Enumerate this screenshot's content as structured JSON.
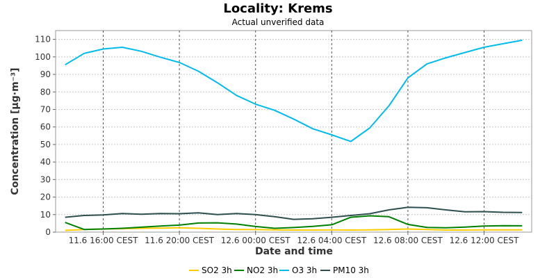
{
  "chart_data": {
    "type": "line",
    "title": "Locality: Krems",
    "subtitle": "Actual unverified data",
    "xlabel": "Date and time",
    "ylabel": "Concentration [µg·m⁻³]",
    "ylim": [
      0,
      115
    ],
    "yticks": [
      0,
      10,
      20,
      30,
      40,
      50,
      60,
      70,
      80,
      90,
      100,
      110
    ],
    "xlim": [
      13.5,
      38.5
    ],
    "x_tick_positions": [
      16,
      20,
      24,
      28,
      32,
      36
    ],
    "x_tick_labels": [
      "11.6 16:00 CEST",
      "11.6 20:00 CEST",
      "12.6 00:00 CEST",
      "12.6 04:00 CEST",
      "12.6 08:00 CEST",
      "12.6 12:00 CEST"
    ],
    "grid": true,
    "legend_position": "bottom",
    "x": [
      14,
      15,
      16,
      17,
      18,
      19,
      20,
      21,
      22,
      23,
      24,
      25,
      26,
      27,
      28,
      29,
      30,
      31,
      32,
      33,
      34,
      35,
      36,
      37,
      38
    ],
    "series": [
      {
        "name": "SO2 3h",
        "color": "#ffcc00",
        "values": [
          1,
          1.5,
          1.8,
          2,
          2.2,
          2.3,
          2.5,
          2.2,
          1.8,
          1.5,
          1.5,
          1.3,
          1.2,
          1.2,
          1.3,
          1.2,
          1.3,
          1.5,
          1.8,
          1.5,
          1.2,
          1.2,
          1.3,
          1.3,
          1.3
        ]
      },
      {
        "name": "NO2 3h",
        "color": "#008000",
        "values": [
          5.5,
          1.5,
          1.8,
          2.2,
          2.8,
          3.5,
          4,
          5.2,
          5.3,
          4.6,
          3.2,
          2.2,
          2.6,
          3.3,
          4.2,
          8.5,
          9.3,
          8.8,
          4.4,
          2.7,
          2.5,
          2.9,
          3.5,
          3.7,
          3.6
        ]
      },
      {
        "name": "O3 3h",
        "color": "#00bbee",
        "values": [
          95.5,
          102,
          104.5,
          105.5,
          103.2,
          99.8,
          96.8,
          91.8,
          85.2,
          78,
          73,
          69.5,
          64.5,
          59,
          55.5,
          51.7,
          59.5,
          72,
          88,
          96,
          99.5,
          102.5,
          105.5,
          107.5,
          109.5
        ]
      },
      {
        "name": "PM10 3h",
        "color": "#2f4f4f",
        "values": [
          8.5,
          9.5,
          9.8,
          10.6,
          10.2,
          10.6,
          10.5,
          11,
          10,
          10.6,
          10,
          8.8,
          7.3,
          7.6,
          8.5,
          9.5,
          10.5,
          12.7,
          14.2,
          13.9,
          12.7,
          11.6,
          11.7,
          11.3,
          11.2
        ]
      }
    ]
  }
}
